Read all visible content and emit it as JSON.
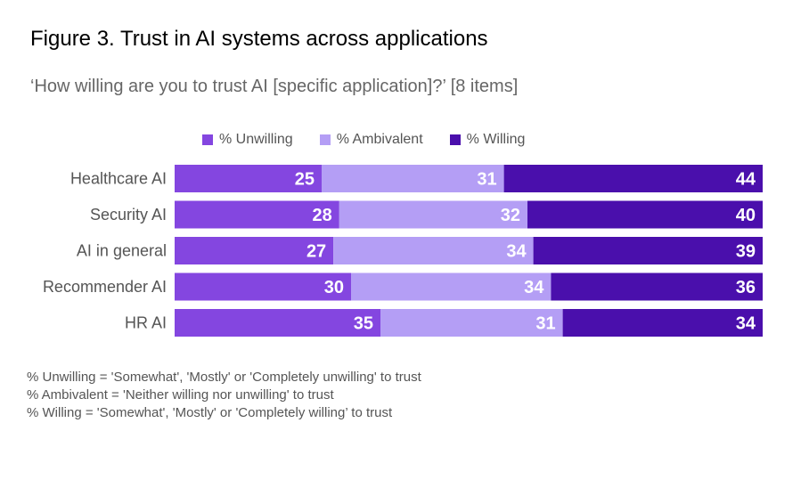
{
  "figure": {
    "title": "Figure 3. Trust in AI systems across applications",
    "subtitle": "‘How willing are you to trust AI [specific application]?’ [8 items]"
  },
  "notes": [
    "% Unwilling = 'Somewhat', 'Mostly' or 'Completely unwilling' to trust",
    "% Ambivalent = 'Neither willing nor unwilling' to trust",
    "% Willing = 'Somewhat', 'Mostly' or 'Completely willing’ to trust"
  ],
  "colors": {
    "unwilling": "#8446e0",
    "ambivalent": "#b49ef5",
    "willing": "#4a0fac",
    "label_text": "#ffffff"
  },
  "chart_data": {
    "type": "bar",
    "orientation": "horizontal",
    "stacked": true,
    "categories": [
      "Healthcare AI",
      "Security AI",
      "AI in general",
      "Recommender AI",
      "HR AI"
    ],
    "series": [
      {
        "name": "% Unwilling",
        "values": [
          25,
          28,
          27,
          30,
          35
        ]
      },
      {
        "name": "% Ambivalent",
        "values": [
          31,
          32,
          34,
          34,
          31
        ]
      },
      {
        "name": "% Willing",
        "values": [
          44,
          40,
          39,
          36,
          34
        ]
      }
    ],
    "xlim": [
      0,
      100
    ],
    "grid": false,
    "legend_position": "top"
  }
}
